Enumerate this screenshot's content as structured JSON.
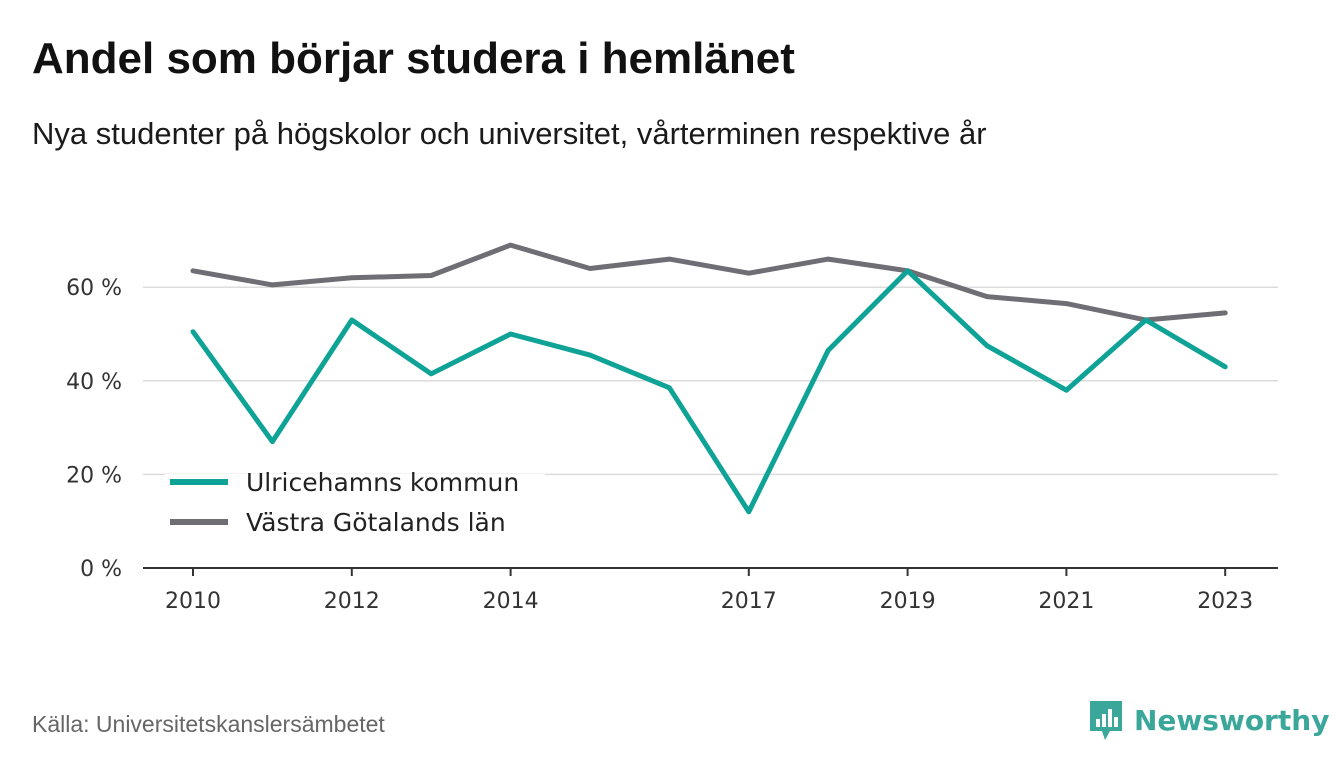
{
  "title": "Andel som börjar studera i hemlänet",
  "subtitle": "Nya studenter på högskolor och universitet, vårterminen respektive år",
  "source": "Källa: Universitetskanslersämbetet",
  "brand": {
    "name": "Newsworthy",
    "icon": "newsworthy-logo-icon",
    "color": "#3aa79a"
  },
  "chart_data": {
    "type": "line",
    "x": [
      2010,
      2011,
      2012,
      2013,
      2014,
      2015,
      2016,
      2017,
      2018,
      2019,
      2020,
      2021,
      2022,
      2023
    ],
    "series": [
      {
        "name": "Ulricehamns kommun",
        "color": "#0fa397",
        "values": [
          50.5,
          27,
          53,
          41.5,
          50,
          45.5,
          38.5,
          12,
          46.5,
          63.5,
          47.5,
          38,
          53,
          43
        ]
      },
      {
        "name": "Västra Götalands län",
        "color": "#6f6e74",
        "values": [
          63.5,
          60.5,
          62,
          62.5,
          69,
          64,
          66,
          63,
          66,
          63.5,
          58,
          56.5,
          53,
          54.5
        ]
      }
    ],
    "ylim": [
      0,
      70
    ],
    "yticks": [
      0,
      20,
      40,
      60
    ],
    "ytick_labels": [
      "0 %",
      "20 %",
      "40 %",
      "60 %"
    ],
    "xticks": [
      2010,
      2012,
      2014,
      2017,
      2019,
      2021,
      2023
    ],
    "xtick_labels": [
      "2010",
      "2012",
      "2014",
      "2017",
      "2019",
      "2021",
      "2023"
    ],
    "grid": true,
    "legend_position": "bottom-left",
    "xlabel": "",
    "ylabel": ""
  }
}
